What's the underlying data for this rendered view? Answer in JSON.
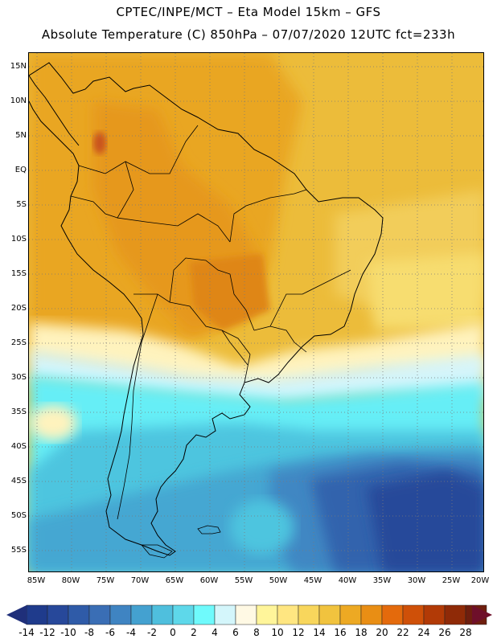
{
  "header": {
    "line1": "CPTEC/INPE/MCT –  Eta Model 15km – GFS",
    "line2": "Absolute Temperature (C) 850hPa – 07/07/2020 12UTC fct=233h"
  },
  "axes": {
    "lat_labels": [
      "15N",
      "10N",
      "5N",
      "EQ",
      "5S",
      "10S",
      "15S",
      "20S",
      "25S",
      "30S",
      "35S",
      "40S",
      "45S",
      "50S",
      "55S"
    ],
    "lon_labels": [
      "85W",
      "80W",
      "75W",
      "70W",
      "65W",
      "60W",
      "55W",
      "50W",
      "45W",
      "40W",
      "35W",
      "30W",
      "25W",
      "20W"
    ],
    "lat_range": [
      17,
      -58
    ],
    "lon_range": [
      -86,
      -20
    ],
    "grid": "dotted"
  },
  "colorbar": {
    "labels": [
      "-14",
      "-12",
      "-10",
      "-8",
      "-6",
      "-4",
      "-2",
      "0",
      "2",
      "4",
      "6",
      "8",
      "10",
      "12",
      "14",
      "16",
      "18",
      "20",
      "22",
      "24",
      "26",
      "28"
    ],
    "colors": [
      "#1f3b8c",
      "#27489a",
      "#2f5ba8",
      "#3a6eb5",
      "#3f84c2",
      "#44a1d0",
      "#4fbfdd",
      "#5ed8ea",
      "#6ffafc",
      "#d4f6fb",
      "#fff9e4",
      "#fff59a",
      "#ffe681",
      "#f8d65c",
      "#f1c33e",
      "#eda923",
      "#e98e14",
      "#e46a0c",
      "#cf5008",
      "#b23a06",
      "#8f2a07",
      "#6e1e0e"
    ],
    "low_end_color": "#1f2f7a",
    "high_end_color": "#6e0f2a"
  },
  "chart_data": {
    "type": "heatmap",
    "variable": "Absolute Temperature (C) 850hPa",
    "units": "C",
    "model": "Eta Model 15km – GFS",
    "valid_init": "07/07/2020 12UTC",
    "forecast_hours": "fct=233h",
    "range_C": [
      -14,
      28
    ]
  }
}
